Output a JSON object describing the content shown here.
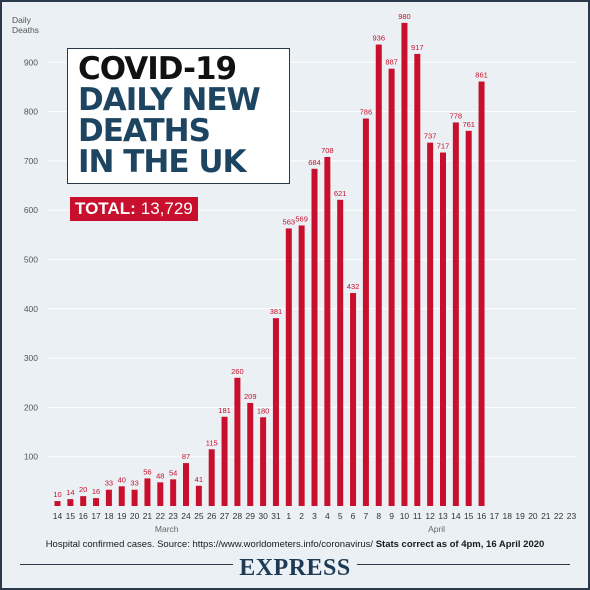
{
  "title": {
    "lines": [
      "COVID-19",
      "DAILY NEW",
      "DEATHS",
      "IN THE UK"
    ]
  },
  "total": {
    "label": "TOTAL:",
    "value": "13,729"
  },
  "footer": {
    "source": "Hospital confirmed cases. Source: https://www.worldometers.info/coronavirus/",
    "stats": "Stats correct as of 4pm, 16 April 2020"
  },
  "brand": "EXPRESS",
  "colors": {
    "bar": "#c8102e",
    "label": "#c8102e",
    "grid": "#ffffff",
    "background": "#eaf0f3",
    "title_dark": "#111111",
    "title_blue": "#1d4460"
  },
  "chart_data": {
    "type": "bar",
    "title": "COVID-19 DAILY NEW DEATHS IN THE UK",
    "ylabel": "Daily Deaths",
    "xlabel": "",
    "ylim": [
      0,
      1000
    ],
    "yticks": [
      100,
      200,
      300,
      400,
      500,
      600,
      700,
      800,
      900
    ],
    "grid": true,
    "categories": [
      "14",
      "15",
      "16",
      "17",
      "18",
      "19",
      "20",
      "21",
      "22",
      "23",
      "24",
      "25",
      "26",
      "27",
      "28",
      "29",
      "30",
      "31",
      "1",
      "2",
      "3",
      "4",
      "5",
      "6",
      "7",
      "8",
      "9",
      "10",
      "11",
      "12",
      "13",
      "14",
      "15",
      "16",
      "17",
      "18",
      "19",
      "20",
      "21",
      "22",
      "23"
    ],
    "values": [
      10,
      14,
      20,
      16,
      33,
      40,
      33,
      56,
      48,
      54,
      87,
      41,
      115,
      181,
      260,
      209,
      180,
      381,
      563,
      569,
      684,
      708,
      621,
      432,
      786,
      936,
      887,
      980,
      917,
      737,
      717,
      778,
      761,
      861,
      null,
      null,
      null,
      null,
      null,
      null,
      null
    ],
    "month_labels": [
      {
        "label": "March",
        "center_index": 8.5
      },
      {
        "label": "April",
        "center_index": 29.5
      }
    ]
  }
}
